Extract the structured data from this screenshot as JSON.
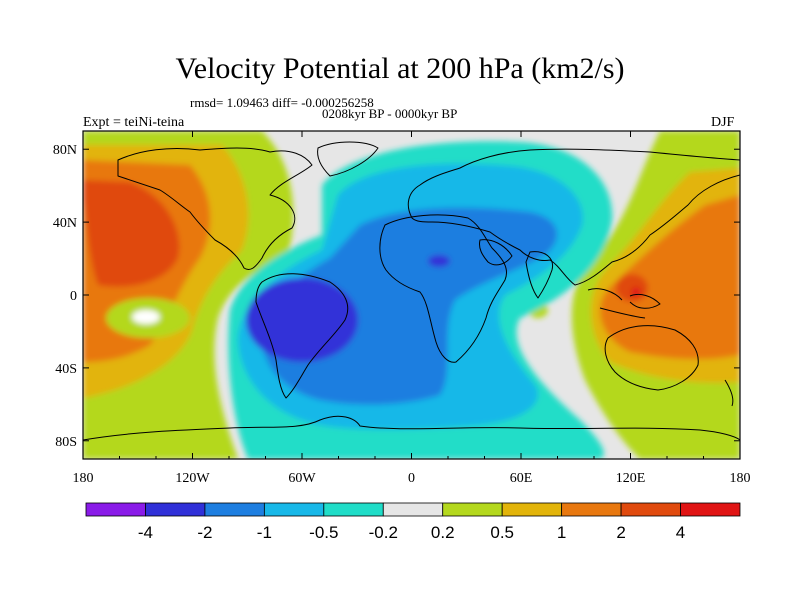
{
  "header": {
    "title": "Velocity Potential at 200 hPa (km2/s)",
    "stats": "rmsd= 1.09463 diff= -0.000256258",
    "period": "0208kyr BP - 0000kyr BP",
    "experiment": "Expt = teiNi-teina",
    "season": "DJF"
  },
  "chart_data": {
    "type": "filled-contour-map",
    "title": "Velocity Potential at 200 hPa (km2/s)",
    "variable": "velocity potential anomaly",
    "units": "km2/s",
    "x_axis": {
      "range": [
        -180,
        180
      ],
      "ticks": [
        -180,
        -120,
        -60,
        0,
        60,
        120,
        180
      ],
      "tick_labels": [
        "180",
        "120W",
        "60W",
        "0",
        "60E",
        "120E",
        "180"
      ]
    },
    "y_axis": {
      "range": [
        -90,
        90
      ],
      "ticks": [
        80,
        40,
        0,
        -40,
        -80
      ],
      "tick_labels": [
        "80N",
        "40N",
        "0",
        "40S",
        "80S"
      ]
    },
    "contour_levels": [
      -4,
      -2,
      -1,
      -0.5,
      -0.2,
      0.2,
      0.5,
      1,
      2,
      4
    ],
    "colorbar_labels": [
      "-4",
      "-2",
      "-1",
      "-0.5",
      "-0.2",
      "0.2",
      "0.5",
      "1",
      "2",
      "4"
    ],
    "colorbar_colors": [
      "#8a1be8",
      "#3030d8",
      "#1e7ee0",
      "#18b8e8",
      "#20ddc8",
      "#e6e6e6",
      "#b4d81e",
      "#e2b40a",
      "#e8780f",
      "#e04a0e",
      "#e01414"
    ],
    "features": [
      {
        "region": "central South America",
        "level": "-4 to -2 (minimum)"
      },
      {
        "region": "northern Africa",
        "level": "-4 to -2 (small minimum)"
      },
      {
        "region": "North Pacific",
        "level": "2 to 4 (maximum)"
      },
      {
        "region": "Maritime Continent",
        "level": "2 to 4 (maximum)"
      }
    ]
  }
}
